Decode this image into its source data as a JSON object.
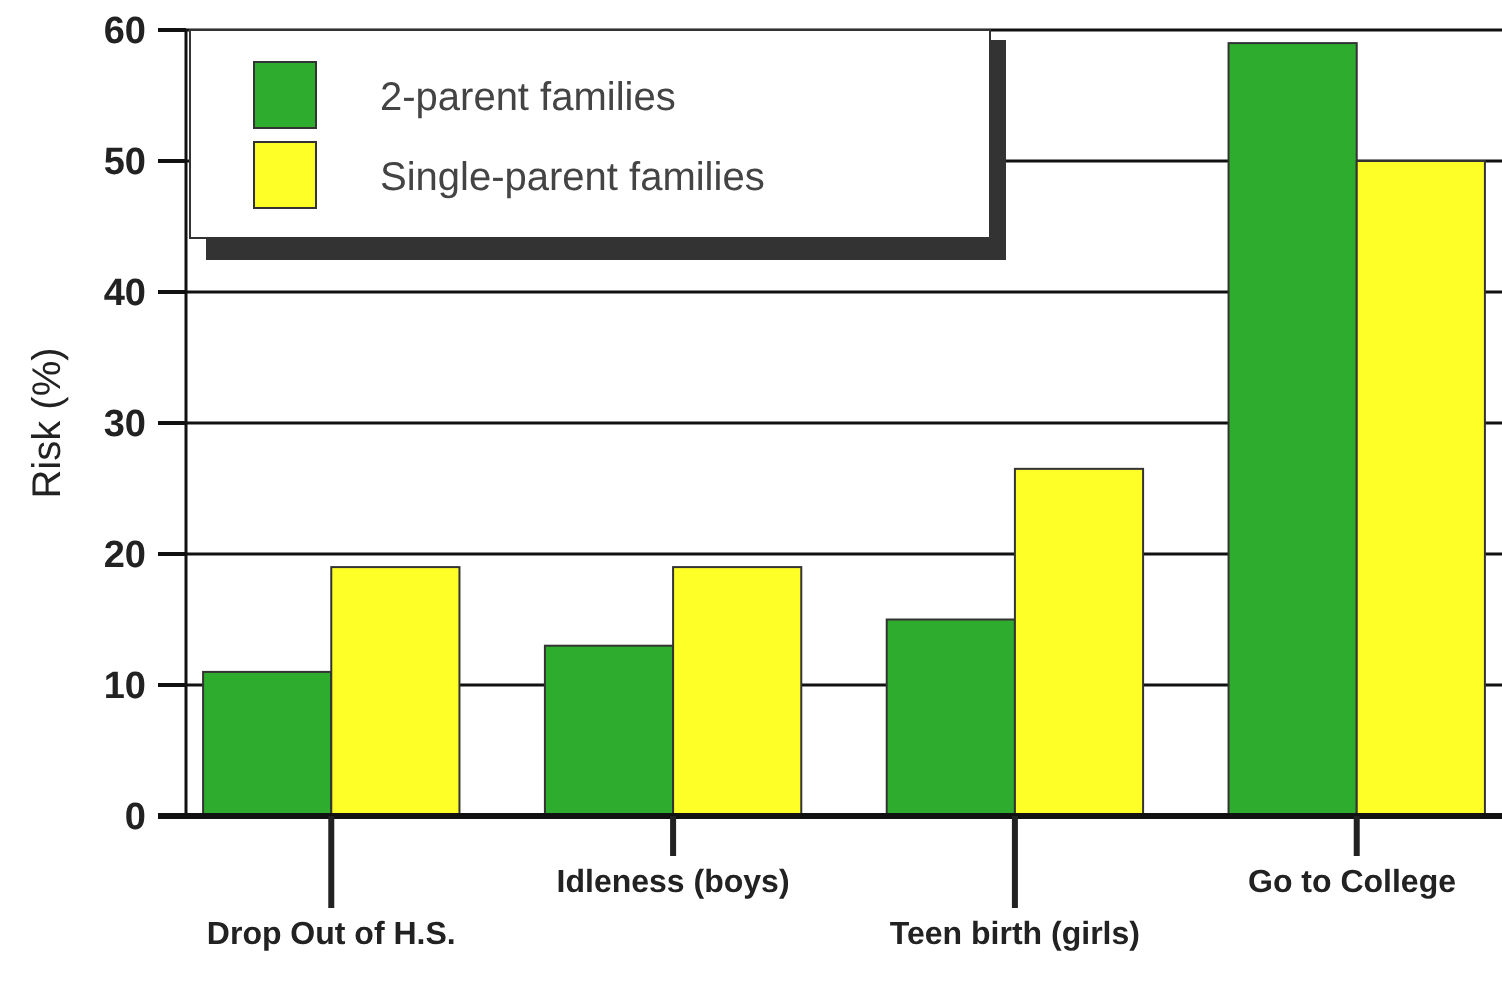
{
  "chart_data": {
    "type": "bar",
    "ylabel": "Risk (%)",
    "categories": [
      "Drop Out of H.S.",
      "Idleness (boys)",
      "Teen birth (girls)",
      "Go to College"
    ],
    "series": [
      {
        "name": "2-parent families",
        "color": "#2eac2e",
        "values": [
          11,
          13,
          15,
          59
        ]
      },
      {
        "name": "Single-parent families",
        "color": "#ffff28",
        "values": [
          19,
          19,
          26.5,
          50
        ]
      }
    ],
    "ylim": [
      0,
      60
    ],
    "yticks": [
      0,
      10,
      20,
      30,
      40,
      50,
      60
    ],
    "grid": "y",
    "legend": "top left"
  }
}
